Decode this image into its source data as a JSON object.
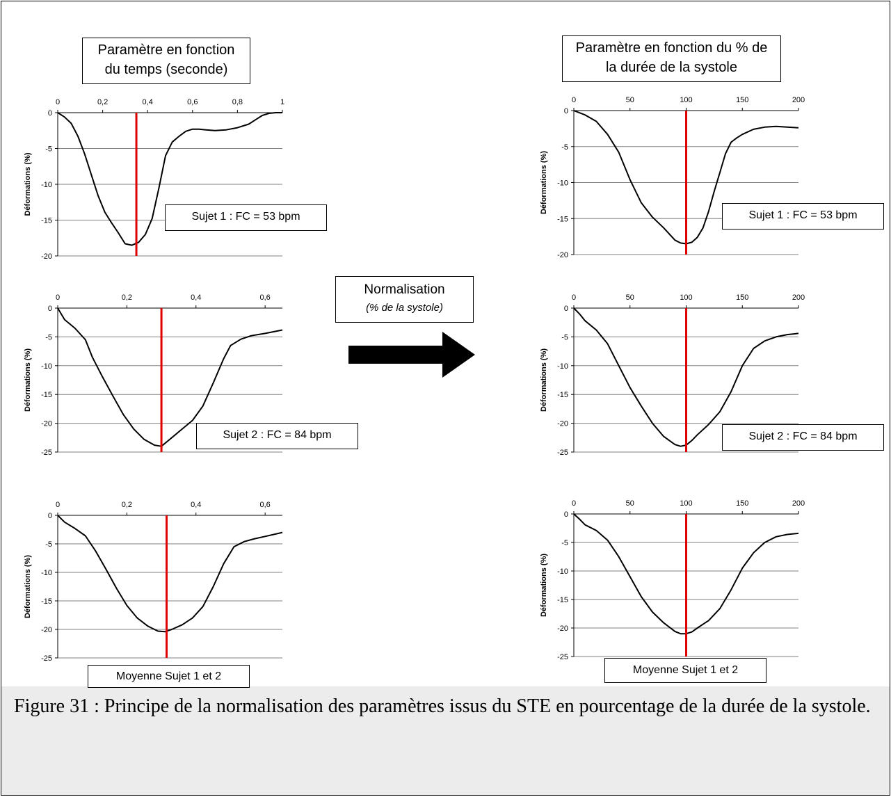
{
  "headers": {
    "left": [
      "Paramètre en fonction",
      "du temps (seconde)"
    ],
    "right": [
      "Paramètre en fonction du % de",
      "la durée de la systole"
    ]
  },
  "normalisation": {
    "title": "Normalisation",
    "subtitle": "(% de la systole)"
  },
  "caption": "Figure 31 : Principe de la normalisation des paramètres issus du STE en pourcentage de la durée de la systole.",
  "colors": {
    "curve": "#000000",
    "marker": "#e00000",
    "grid": "#808080"
  },
  "chart_data": [
    {
      "id": "left-1",
      "type": "line",
      "ylabel": "Déformations (%)",
      "xlim": [
        0,
        1
      ],
      "ylim": [
        -20,
        0
      ],
      "xticks": [
        0,
        0.2,
        0.4,
        0.6,
        0.8,
        1
      ],
      "xtick_labels": [
        "0",
        "0,2",
        "0,4",
        "0,6",
        "0,8",
        "1"
      ],
      "yticks": [
        0,
        -5,
        -10,
        -15,
        -20
      ],
      "marker_x": 0.35,
      "annotation": "Sujet 1 : FC = 53 bpm",
      "x": [
        0,
        0.03,
        0.06,
        0.09,
        0.12,
        0.15,
        0.18,
        0.21,
        0.24,
        0.27,
        0.3,
        0.33,
        0.36,
        0.39,
        0.42,
        0.45,
        0.48,
        0.51,
        0.54,
        0.57,
        0.6,
        0.63,
        0.66,
        0.7,
        0.75,
        0.8,
        0.85,
        0.88,
        0.91,
        0.94,
        0.97,
        1
      ],
      "y": [
        0,
        -0.6,
        -1.5,
        -3.3,
        -5.8,
        -8.7,
        -11.6,
        -13.9,
        -15.4,
        -16.8,
        -18.3,
        -18.5,
        -18.1,
        -17.0,
        -14.8,
        -10.6,
        -6.0,
        -4.1,
        -3.3,
        -2.6,
        -2.3,
        -2.3,
        -2.4,
        -2.5,
        -2.4,
        -2.1,
        -1.6,
        -1.0,
        -0.4,
        -0.1,
        0,
        0
      ]
    },
    {
      "id": "left-2",
      "type": "line",
      "ylabel": "Déformations (%)",
      "xlim": [
        0,
        0.65
      ],
      "ylim": [
        -25,
        0
      ],
      "xticks": [
        0,
        0.2,
        0.4,
        0.6
      ],
      "xtick_labels": [
        "0",
        "0,2",
        "0,4",
        "0,6"
      ],
      "yticks": [
        0,
        -5,
        -10,
        -15,
        -20,
        -25
      ],
      "marker_x": 0.3,
      "annotation": "Sujet 2 : FC = 84 bpm",
      "x": [
        0,
        0.02,
        0.05,
        0.08,
        0.1,
        0.13,
        0.16,
        0.19,
        0.22,
        0.25,
        0.28,
        0.3,
        0.33,
        0.36,
        0.39,
        0.42,
        0.45,
        0.48,
        0.5,
        0.53,
        0.56,
        0.6,
        0.65
      ],
      "y": [
        0,
        -2.0,
        -3.5,
        -5.5,
        -8.5,
        -12.0,
        -15.3,
        -18.5,
        -21.0,
        -22.8,
        -23.8,
        -24.0,
        -22.5,
        -21.0,
        -19.5,
        -17.0,
        -13.0,
        -8.8,
        -6.5,
        -5.4,
        -4.8,
        -4.4,
        -3.8
      ]
    },
    {
      "id": "left-3",
      "type": "line",
      "ylabel": "Déformations (%)",
      "xlim": [
        0,
        0.65
      ],
      "ylim": [
        -25,
        0
      ],
      "xticks": [
        0,
        0.2,
        0.4,
        0.6
      ],
      "xtick_labels": [
        "0",
        "0,2",
        "0,4",
        "0,6"
      ],
      "yticks": [
        0,
        -5,
        -10,
        -15,
        -20,
        -25
      ],
      "marker_x": 0.315,
      "annotation": "Moyenne Sujet 1 et 2",
      "x": [
        0,
        0.02,
        0.05,
        0.08,
        0.11,
        0.14,
        0.17,
        0.2,
        0.23,
        0.26,
        0.29,
        0.31,
        0.33,
        0.36,
        0.39,
        0.42,
        0.45,
        0.48,
        0.51,
        0.54,
        0.57,
        0.6,
        0.65
      ],
      "y": [
        0,
        -1.2,
        -2.3,
        -3.6,
        -6.3,
        -9.5,
        -12.8,
        -15.8,
        -18.0,
        -19.4,
        -20.3,
        -20.4,
        -20.0,
        -19.2,
        -18.0,
        -16.0,
        -12.5,
        -8.5,
        -5.5,
        -4.6,
        -4.1,
        -3.7,
        -3.0
      ]
    },
    {
      "id": "right-1",
      "type": "line",
      "ylabel": "Déformations (%)",
      "xlim": [
        0,
        200
      ],
      "ylim": [
        -20,
        0
      ],
      "xticks": [
        0,
        50,
        100,
        150,
        200
      ],
      "xtick_labels": [
        "0",
        "50",
        "100",
        "150",
        "200"
      ],
      "yticks": [
        0,
        -5,
        -10,
        -15,
        -20
      ],
      "marker_x": 100,
      "annotation": "Sujet 1 : FC = 53 bpm",
      "x": [
        0,
        10,
        20,
        30,
        40,
        50,
        60,
        70,
        80,
        90,
        95,
        100,
        105,
        110,
        115,
        120,
        125,
        130,
        135,
        140,
        145,
        150,
        160,
        170,
        180,
        190,
        200
      ],
      "y": [
        0,
        -0.6,
        -1.5,
        -3.3,
        -5.8,
        -9.6,
        -12.8,
        -14.8,
        -16.3,
        -18.0,
        -18.4,
        -18.5,
        -18.3,
        -17.6,
        -16.3,
        -14.0,
        -11.2,
        -8.6,
        -6.0,
        -4.4,
        -3.8,
        -3.3,
        -2.6,
        -2.3,
        -2.2,
        -2.3,
        -2.4
      ]
    },
    {
      "id": "right-2",
      "type": "line",
      "ylabel": "Déformations (%)",
      "xlim": [
        0,
        200
      ],
      "ylim": [
        -25,
        0
      ],
      "xticks": [
        0,
        50,
        100,
        150,
        200
      ],
      "xtick_labels": [
        "0",
        "50",
        "100",
        "150",
        "200"
      ],
      "yticks": [
        0,
        -5,
        -10,
        -15,
        -20,
        -25
      ],
      "marker_x": 100,
      "annotation": "Sujet 2 : FC = 84 bpm",
      "x": [
        0,
        5,
        10,
        20,
        30,
        40,
        50,
        60,
        70,
        80,
        90,
        95,
        100,
        105,
        110,
        120,
        130,
        140,
        150,
        160,
        170,
        180,
        190,
        200
      ],
      "y": [
        0,
        -1.0,
        -2.2,
        -3.8,
        -6.2,
        -10.0,
        -13.8,
        -17.0,
        -20.0,
        -22.3,
        -23.7,
        -24.0,
        -23.8,
        -23.0,
        -22.0,
        -20.2,
        -18.0,
        -14.5,
        -10.0,
        -7.0,
        -5.7,
        -5.0,
        -4.6,
        -4.4
      ]
    },
    {
      "id": "right-3",
      "type": "line",
      "ylabel": "Déformations (%)",
      "xlim": [
        0,
        200
      ],
      "ylim": [
        -25,
        0
      ],
      "xticks": [
        0,
        50,
        100,
        150,
        200
      ],
      "xtick_labels": [
        "0",
        "50",
        "100",
        "150",
        "200"
      ],
      "yticks": [
        0,
        -5,
        -10,
        -15,
        -20,
        -25
      ],
      "marker_x": 100,
      "annotation": "Moyenne Sujet 1 et 2",
      "x": [
        0,
        5,
        10,
        20,
        30,
        40,
        50,
        60,
        70,
        80,
        90,
        95,
        100,
        105,
        110,
        120,
        130,
        140,
        150,
        160,
        170,
        180,
        190,
        200
      ],
      "y": [
        0,
        -0.9,
        -1.9,
        -2.9,
        -4.6,
        -7.5,
        -11.0,
        -14.5,
        -17.2,
        -19.1,
        -20.6,
        -21.0,
        -21.0,
        -20.7,
        -20.0,
        -18.7,
        -16.6,
        -13.3,
        -9.5,
        -6.8,
        -5.0,
        -4.0,
        -3.6,
        -3.4
      ]
    }
  ]
}
